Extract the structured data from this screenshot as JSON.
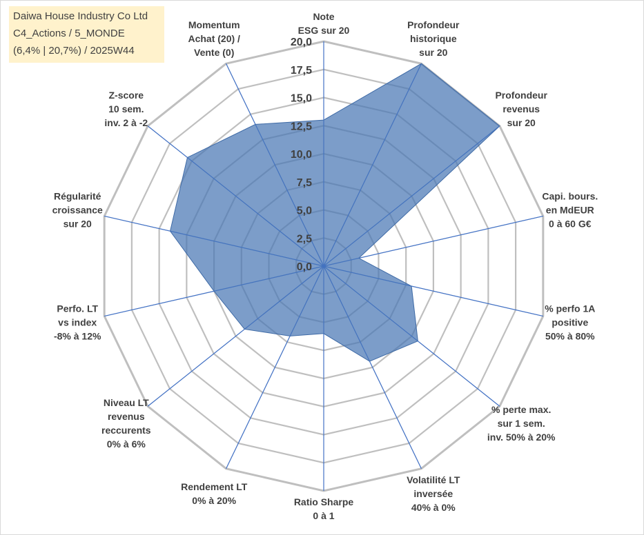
{
  "chart_data": {
    "type": "radar",
    "title_lines": [
      "Daiwa House Industry Co Ltd",
      "C4_Actions / 5_MONDE",
      "(6,4% | 20,7%) / 2025W44"
    ],
    "r_min": 0,
    "r_max": 20,
    "r_step": 2.5,
    "tick_labels": [
      "0,0",
      "2,5",
      "5,0",
      "7,5",
      "10,0",
      "12,5",
      "15,0",
      "17,5",
      "20,0"
    ],
    "axes": [
      {
        "label_lines": [
          "Note",
          "ESG sur 20"
        ],
        "value": 13
      },
      {
        "label_lines": [
          "Profondeur",
          "historique",
          "sur 20"
        ],
        "value": 20
      },
      {
        "label_lines": [
          "Profondeur",
          "revenus",
          "sur 20"
        ],
        "value": 20
      },
      {
        "label_lines": [
          "Capi. bours.",
          "en MdEUR",
          "0 à 60 G€"
        ],
        "value": 3.2
      },
      {
        "label_lines": [
          "% perfo 1A",
          "positive",
          "50% à 80%"
        ],
        "value": 8
      },
      {
        "label_lines": [
          "% perte max.",
          "sur 1 sem.",
          "inv. 50% à 20%"
        ],
        "value": 10.7
      },
      {
        "label_lines": [
          "Volatilité LT",
          "inversée",
          "40% à 0%"
        ],
        "value": 9.4
      },
      {
        "label_lines": [
          "Ratio Sharpe",
          "0 à 1"
        ],
        "value": 6
      },
      {
        "label_lines": [
          "Rendement LT",
          "0% à 20%"
        ],
        "value": 6.9
      },
      {
        "label_lines": [
          "Niveau LT",
          "revenus",
          "reccurents",
          "0% à 6%"
        ],
        "value": 9
      },
      {
        "label_lines": [
          "Perfo. LT",
          "vs index",
          "-8% à 12%"
        ],
        "value": 10
      },
      {
        "label_lines": [
          "Régularité",
          "croissance",
          "sur 20"
        ],
        "value": 14
      },
      {
        "label_lines": [
          "Z-score",
          "10 sem.",
          "inv. 2 à -2"
        ],
        "value": 15.5
      },
      {
        "label_lines": [
          "Momentum",
          "Achat (20) /",
          "Vente (0)"
        ],
        "value": 14
      }
    ],
    "colors": {
      "fill": "#4a77b4",
      "fill_opacity": 0.72,
      "series_stroke": "#3e6aa6",
      "spoke": "#4472c4",
      "grid": "#bfbfbf",
      "text": "#404040",
      "title_bg": "#fff2cc"
    }
  }
}
